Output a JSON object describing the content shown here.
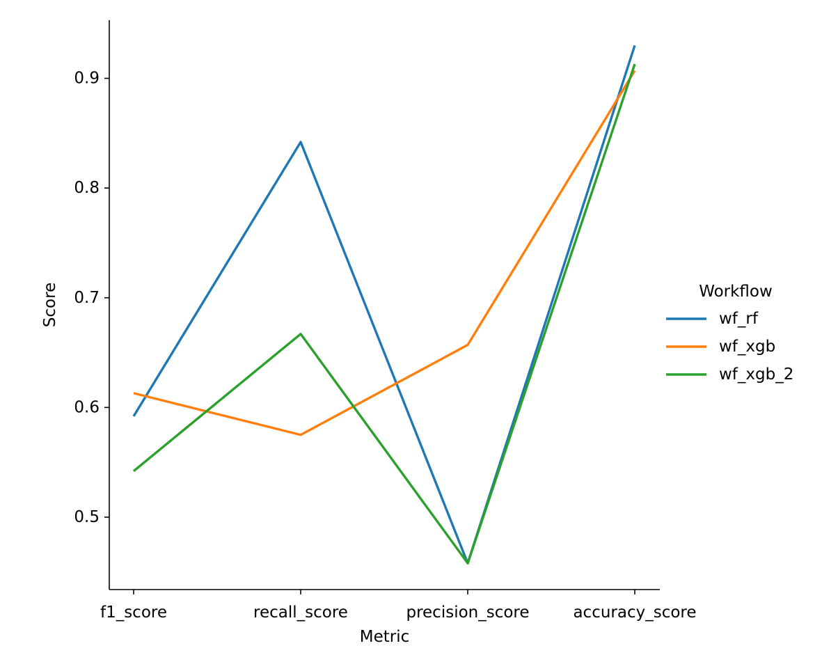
{
  "chart_data": {
    "type": "line",
    "title": "",
    "xlabel": "Metric",
    "ylabel": "Score",
    "categories": [
      "f1_score",
      "recall_score",
      "precision_score",
      "accuracy_score"
    ],
    "ylim": [
      0.434,
      0.953
    ],
    "yticks": [
      "0.5",
      "0.6",
      "0.7",
      "0.8",
      "0.9"
    ],
    "grid": false,
    "legend": {
      "title": "Workflow",
      "placement": "right"
    },
    "series": [
      {
        "name": "wf_rf",
        "color": "#1f77b4",
        "values": [
          0.592,
          0.842,
          0.458,
          0.93
        ]
      },
      {
        "name": "wf_xgb",
        "color": "#ff7f0e",
        "values": [
          0.613,
          0.575,
          0.657,
          0.907
        ]
      },
      {
        "name": "wf_xgb_2",
        "color": "#2ca02c",
        "values": [
          0.542,
          0.667,
          0.458,
          0.913
        ]
      }
    ]
  }
}
